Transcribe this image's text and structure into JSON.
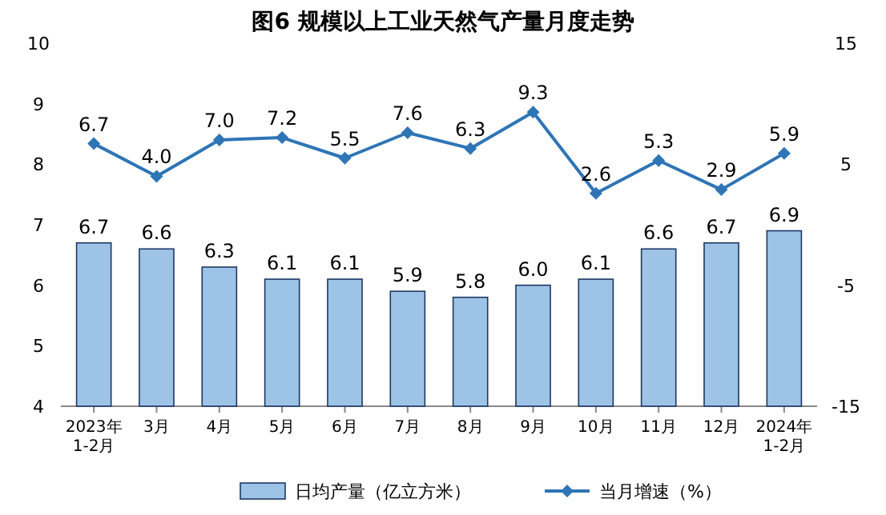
{
  "chart_data": {
    "type": "bar",
    "title": "图6 规模以上工业天然气产量月度走势",
    "categories": [
      "2023年\n1-2月",
      "3月",
      "4月",
      "5月",
      "6月",
      "7月",
      "8月",
      "9月",
      "10月",
      "11月",
      "12月",
      "2024年\n1-2月"
    ],
    "series": [
      {
        "name": "日均产量（亿立方米）",
        "color": "#9dc3e6",
        "values": [
          6.7,
          6.6,
          6.3,
          6.1,
          6.1,
          5.9,
          5.8,
          6.0,
          6.1,
          6.6,
          6.7,
          6.9
        ],
        "value_labels": [
          "6.7",
          "6.6",
          "6.3",
          "6.1",
          "6.1",
          "5.9",
          "5.8",
          "6.0",
          "6.1",
          "6.6",
          "6.7",
          "6.9"
        ]
      },
      {
        "name": "当月增速（%）",
        "type": "line",
        "axis": "y2",
        "color": "#2e75b6",
        "marker": "diamond",
        "values": [
          6.7,
          4.0,
          7.0,
          7.2,
          5.5,
          7.6,
          6.3,
          9.3,
          2.6,
          5.3,
          2.9,
          5.9
        ],
        "value_labels": [
          "6.7",
          "4.0",
          "7.0",
          "7.2",
          "5.5",
          "7.6",
          "6.3",
          "9.3",
          "2.6",
          "5.3",
          "2.9",
          "5.9"
        ]
      }
    ],
    "ylim": [
      4,
      10
    ],
    "yticks": [
      4,
      5,
      6,
      7,
      8,
      9,
      10
    ],
    "y2lim": [
      -15,
      15
    ],
    "y2ticks": [
      -15,
      -5,
      5,
      15
    ],
    "legend": "bottom",
    "grid": false
  }
}
